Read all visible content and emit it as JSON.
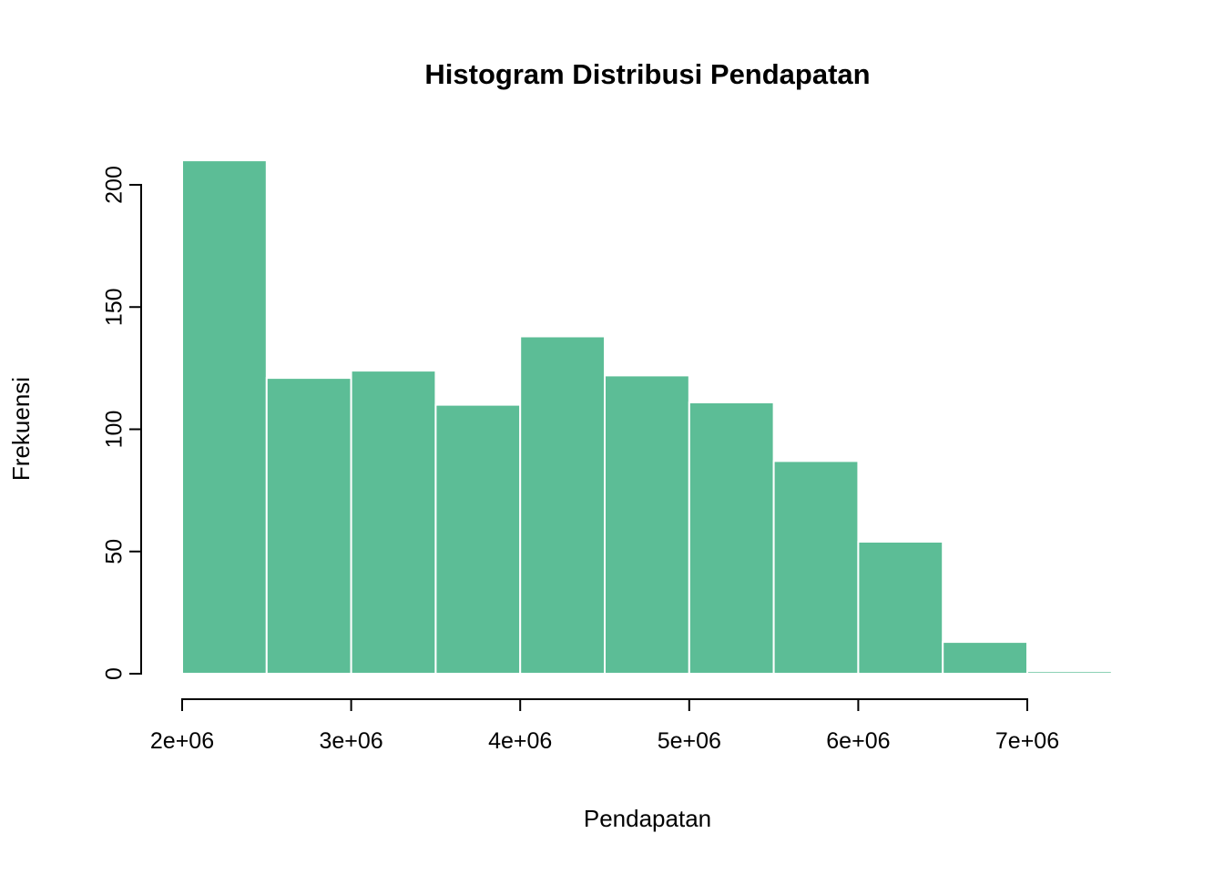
{
  "page": {
    "background_color": "#ffffff"
  },
  "chart_data": {
    "type": "bar",
    "subtype": "histogram",
    "title": "Histogram Distribusi Pendapatan",
    "xlabel": "Pendapatan",
    "ylabel": "Frekuensi",
    "bin_breaks": [
      2000000,
      2500000,
      3000000,
      3500000,
      4000000,
      4500000,
      5000000,
      5500000,
      6000000,
      6500000,
      7000000,
      7500000
    ],
    "counts": [
      210,
      121,
      124,
      110,
      138,
      122,
      111,
      87,
      54,
      13,
      1
    ],
    "x_ticks": [
      {
        "value": 2000000,
        "label": "2e+06"
      },
      {
        "value": 3000000,
        "label": "3e+06"
      },
      {
        "value": 4000000,
        "label": "4e+06"
      },
      {
        "value": 5000000,
        "label": "5e+06"
      },
      {
        "value": 6000000,
        "label": "6e+06"
      },
      {
        "value": 7000000,
        "label": "7e+06"
      }
    ],
    "y_ticks": [
      {
        "value": 0,
        "label": "0"
      },
      {
        "value": 50,
        "label": "50"
      },
      {
        "value": 100,
        "label": "100"
      },
      {
        "value": 150,
        "label": "150"
      },
      {
        "value": 200,
        "label": "200"
      }
    ],
    "xlim": [
      2000000,
      7500000
    ],
    "ylim": [
      0,
      200
    ],
    "grid": false,
    "legend_position": "none",
    "bar_color": "#5cbd96",
    "bar_border_color": "#ffffff",
    "axis_color": "#000000",
    "text_color": "#000000"
  }
}
